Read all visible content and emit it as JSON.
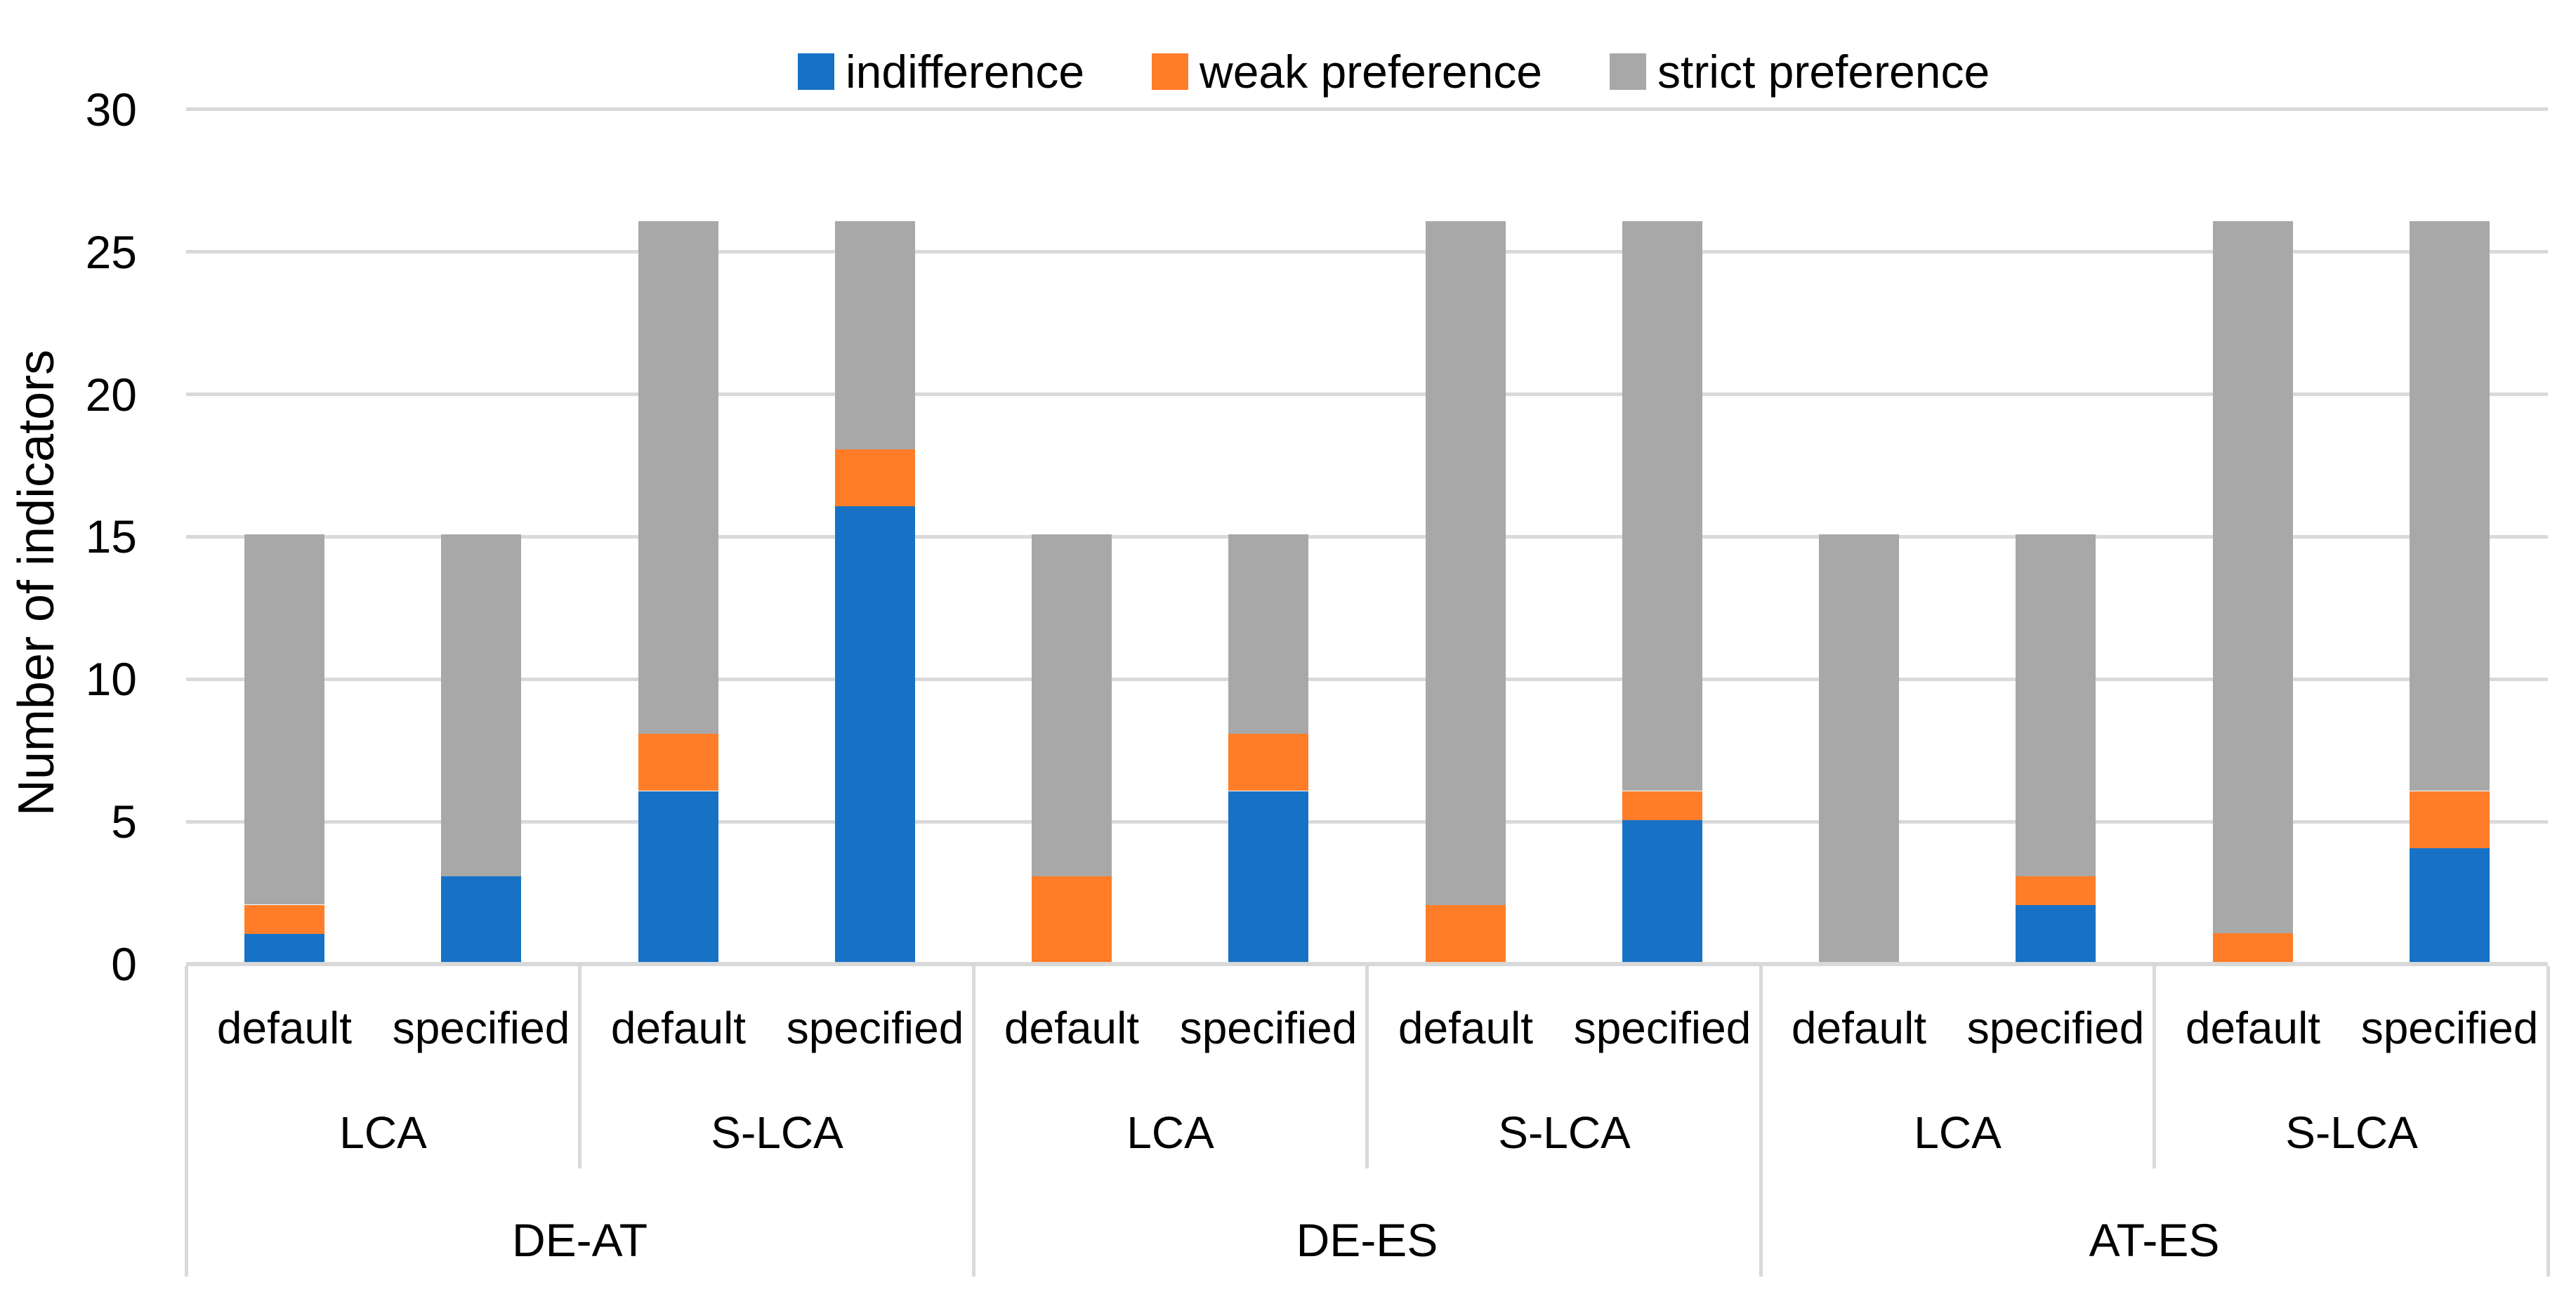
{
  "chart_data": {
    "type": "bar",
    "stacked": true,
    "title": "",
    "ylabel": "Number of indicators",
    "xlabel": "",
    "ylim": [
      0,
      30
    ],
    "yticks": [
      0,
      5,
      10,
      15,
      20,
      25,
      30
    ],
    "grid": true,
    "legend_position": "top",
    "colors": {
      "gridline": "#D9D9D9",
      "axis_line": "#D9D9D9",
      "text": "#000000",
      "background": "#FFFFFF"
    },
    "series": [
      {
        "key": "indifference",
        "label": "indifference",
        "color": "#1772C6"
      },
      {
        "key": "weak_preference",
        "label": "weak preference",
        "color": "#FF7D28"
      },
      {
        "key": "strict_preference",
        "label": "strict preference",
        "color": "#A8A8A8"
      }
    ],
    "groups": [
      {
        "label": "DE-AT",
        "subgroups": [
          {
            "label": "LCA",
            "bars": [
              {
                "label": "default",
                "indifference": 1,
                "weak_preference": 1,
                "strict_preference": 13
              },
              {
                "label": "specified",
                "indifference": 3,
                "weak_preference": 0,
                "strict_preference": 12
              }
            ]
          },
          {
            "label": "S-LCA",
            "bars": [
              {
                "label": "default",
                "indifference": 6,
                "weak_preference": 2,
                "strict_preference": 18
              },
              {
                "label": "specified",
                "indifference": 16,
                "weak_preference": 2,
                "strict_preference": 8
              }
            ]
          }
        ]
      },
      {
        "label": "DE-ES",
        "subgroups": [
          {
            "label": "LCA",
            "bars": [
              {
                "label": "default",
                "indifference": 0,
                "weak_preference": 3,
                "strict_preference": 12
              },
              {
                "label": "specified",
                "indifference": 6,
                "weak_preference": 2,
                "strict_preference": 7
              }
            ]
          },
          {
            "label": "S-LCA",
            "bars": [
              {
                "label": "default",
                "indifference": 0,
                "weak_preference": 2,
                "strict_preference": 24
              },
              {
                "label": "specified",
                "indifference": 5,
                "weak_preference": 1,
                "strict_preference": 20
              }
            ]
          }
        ]
      },
      {
        "label": "AT-ES",
        "subgroups": [
          {
            "label": "LCA",
            "bars": [
              {
                "label": "default",
                "indifference": 0,
                "weak_preference": 0,
                "strict_preference": 15
              },
              {
                "label": "specified",
                "indifference": 2,
                "weak_preference": 1,
                "strict_preference": 12
              }
            ]
          },
          {
            "label": "S-LCA",
            "bars": [
              {
                "label": "default",
                "indifference": 0,
                "weak_preference": 1,
                "strict_preference": 25
              },
              {
                "label": "specified",
                "indifference": 4,
                "weak_preference": 2,
                "strict_preference": 20
              }
            ]
          }
        ]
      }
    ]
  }
}
